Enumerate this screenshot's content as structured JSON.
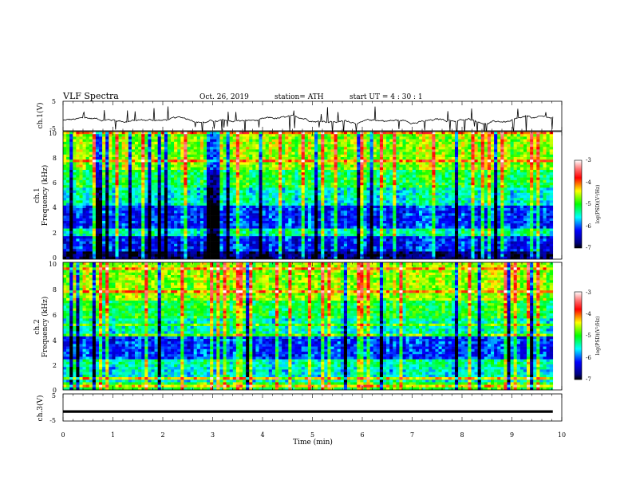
{
  "header": {
    "title": "VLF  Spectra",
    "date": "Oct. 26, 2019",
    "station": "station= ATH",
    "start_ut": "start  UT  =   4  : 30 : 1"
  },
  "chart_data": [
    {
      "type": "line",
      "panel": "ch1",
      "ylabel": "ch.1(V)",
      "ylim": [
        -5,
        5
      ],
      "yticks": [
        "5",
        "-5"
      ],
      "xlim": [
        0,
        9.82
      ],
      "baseline_v": -1.5
    },
    {
      "type": "heatmap",
      "panel": "ch1-spectrogram",
      "ylabel_line1": "ch.1",
      "ylabel_line2": "Frequency  (kHz)",
      "ylim": [
        0,
        10
      ],
      "yticks": [
        "0",
        "2",
        "4",
        "6",
        "8",
        "10"
      ],
      "xlim": [
        0,
        9.82
      ],
      "colorbar": {
        "label": "log(PSD)(V²/Hz)",
        "range": [
          -7,
          -3
        ],
        "ticks": [
          "-3",
          "-4",
          "-5",
          "-6",
          "-7"
        ]
      }
    },
    {
      "type": "heatmap",
      "panel": "ch2-spectrogram",
      "ylabel_line1": "ch.2",
      "ylabel_line2": "Frequency  (kHz)",
      "ylim": [
        0,
        10
      ],
      "yticks": [
        "0",
        "2",
        "4",
        "6",
        "8",
        "10"
      ],
      "xlim": [
        0,
        9.82
      ],
      "colorbar": {
        "label": "log(PSD)(V²/Hz)",
        "range": [
          -7,
          -3
        ],
        "ticks": [
          "-3",
          "-4",
          "-5",
          "-6",
          "-7"
        ]
      }
    },
    {
      "type": "line",
      "panel": "ch3",
      "ylabel": "ch.3(V)",
      "ylim": [
        -5,
        5
      ],
      "yticks": [
        "5",
        "-5"
      ],
      "xlim": [
        0,
        9.82
      ],
      "baseline_v": -1.5,
      "xlabel": "Time  (min)",
      "xticks": [
        "0",
        "1",
        "2",
        "3",
        "4",
        "5",
        "6",
        "7",
        "8",
        "9",
        "10"
      ]
    }
  ]
}
